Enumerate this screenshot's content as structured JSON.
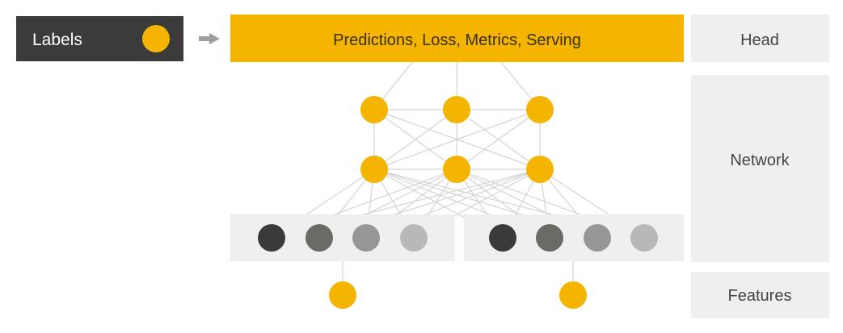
{
  "labels_box": {
    "text": "Labels"
  },
  "head_bar": {
    "text": "Predictions, Loss, Metrics, Serving"
  },
  "layer_labels": {
    "head": "Head",
    "network": "Network",
    "features": "Features"
  },
  "colors": {
    "accent": "#F4B400",
    "panel": "#EFEFEF",
    "dark_box": "#3B3B3B",
    "line": "#D4D4D4",
    "arrow": "#9E9E9E",
    "embedding_shades": [
      "#3A3A3A",
      "#6B6B65",
      "#969696",
      "#B8B8B8"
    ]
  }
}
